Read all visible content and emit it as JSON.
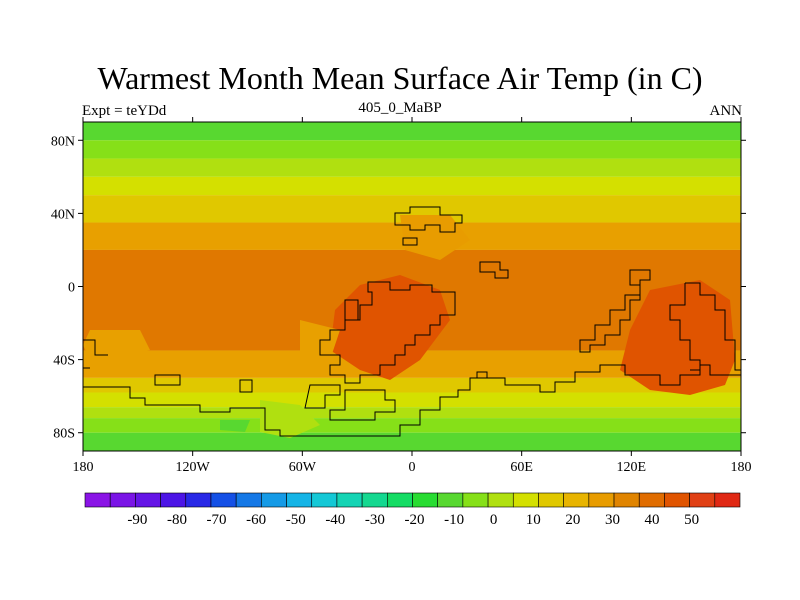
{
  "title": "Warmest Month Mean Surface Air Temp (in C)",
  "subtitle_left": "Expt = teYDd",
  "subtitle_center": "405_0_MaBP",
  "subtitle_right": "ANN",
  "map": {
    "lat_ticks": [
      {
        "value": 80,
        "label": "80N"
      },
      {
        "value": 40,
        "label": "40N"
      },
      {
        "value": 0,
        "label": "0"
      },
      {
        "value": -40,
        "label": "40S"
      },
      {
        "value": -80,
        "label": "80S"
      }
    ],
    "lon_ticks": [
      {
        "value": -180,
        "label": "180"
      },
      {
        "value": -120,
        "label": "120W"
      },
      {
        "value": -60,
        "label": "60W"
      },
      {
        "value": 0,
        "label": "0"
      },
      {
        "value": 60,
        "label": "60E"
      },
      {
        "value": 120,
        "label": "120E"
      },
      {
        "value": 180,
        "label": "180"
      }
    ],
    "lat_range": [
      -90,
      90
    ],
    "lon_range": [
      -180,
      180
    ],
    "zonal_bands": [
      {
        "lat": [
          80,
          90
        ],
        "color": "#58d830"
      },
      {
        "lat": [
          70,
          80
        ],
        "color": "#86e018"
      },
      {
        "lat": [
          60,
          70
        ],
        "color": "#b0e010"
      },
      {
        "lat": [
          50,
          60
        ],
        "color": "#d4e000"
      },
      {
        "lat": [
          35,
          50
        ],
        "color": "#e0c800"
      },
      {
        "lat": [
          20,
          35
        ],
        "color": "#e8a000"
      },
      {
        "lat": [
          -35,
          20
        ],
        "color": "#e07800"
      },
      {
        "lat": [
          -50,
          -35
        ],
        "color": "#e8a000"
      },
      {
        "lat": [
          -58,
          -50
        ],
        "color": "#e0c800"
      },
      {
        "lat": [
          -66,
          -58
        ],
        "color": "#d4e000"
      },
      {
        "lat": [
          -72,
          -66
        ],
        "color": "#b0e010"
      },
      {
        "lat": [
          -80,
          -72
        ],
        "color": "#86e018"
      },
      {
        "lat": [
          -90,
          -80
        ],
        "color": "#58d830"
      }
    ]
  },
  "colorbar": {
    "labels": [
      "-90",
      "-80",
      "-70",
      "-60",
      "-50",
      "-40",
      "-30",
      "-20",
      "-10",
      "0",
      "10",
      "20",
      "30",
      "40",
      "50"
    ],
    "colors": [
      "#8a14e6",
      "#7a14e6",
      "#6414e6",
      "#4c14e6",
      "#2828e6",
      "#1450e6",
      "#1478e6",
      "#149ae6",
      "#14b4e6",
      "#14c8d6",
      "#14d4b4",
      "#14d890",
      "#14dc64",
      "#28dc32",
      "#58d830",
      "#86e018",
      "#b0e010",
      "#d4e000",
      "#e0c800",
      "#e8b400",
      "#e89c00",
      "#e08400",
      "#e06c00",
      "#e05400",
      "#e04014",
      "#e02814"
    ]
  }
}
